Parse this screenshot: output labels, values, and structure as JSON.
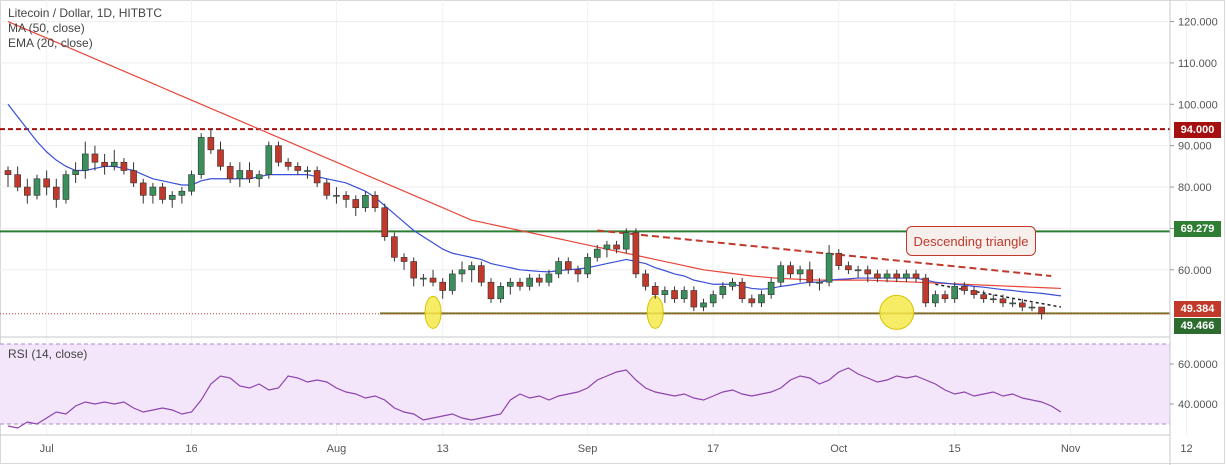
{
  "legend": {
    "title": "Litecoin / Dollar, 1D, HITBTC",
    "ma": "MA (50, close)",
    "ema": "EMA (20, close)"
  },
  "rsi_title": "RSI (14, close)",
  "annotation": "Descending triangle",
  "price_tags": {
    "resistance": "94.000",
    "triangle_top": "69.279",
    "last": "49.384",
    "support": "49.466"
  },
  "colors": {
    "up": "#3a8f5c",
    "down": "#c0392b",
    "ma": "#e8463a",
    "ema": "#3a4fd8",
    "rsi": "#8e44ad",
    "resistance": "#a50f0f",
    "triangle_top": "#2e7d32",
    "support": "#7a7a2e",
    "highlight": "#f6e94b"
  },
  "chart_data": {
    "type": "line",
    "title": "Litecoin / Dollar, 1D, HITBTC",
    "price_axis": {
      "ticks": [
        "120.000",
        "110.000",
        "100.000",
        "90.000",
        "80.000",
        "70.000",
        "60.000"
      ],
      "ylim": [
        44,
        124
      ]
    },
    "time_axis": {
      "labels": [
        "Jul",
        "16",
        "Aug",
        "13",
        "Sep",
        "17",
        "Oct",
        "15",
        "Nov",
        "12"
      ]
    },
    "levels": [
      {
        "name": "resistance",
        "value": 94.0
      },
      {
        "name": "triangle_top",
        "value": 69.279
      },
      {
        "name": "support",
        "value": 49.466
      },
      {
        "name": "last",
        "value": 49.384
      }
    ],
    "candles": [
      [
        84,
        85,
        80,
        83
      ],
      [
        83,
        85,
        79,
        80
      ],
      [
        80,
        82,
        76,
        78
      ],
      [
        78,
        83,
        77,
        82
      ],
      [
        82,
        84,
        78,
        80
      ],
      [
        80,
        82,
        75,
        77
      ],
      [
        77,
        84,
        76,
        83
      ],
      [
        83,
        86,
        81,
        84
      ],
      [
        84,
        91,
        82,
        88
      ],
      [
        88,
        90,
        84,
        86
      ],
      [
        86,
        88,
        83,
        85
      ],
      [
        85,
        89,
        84,
        86
      ],
      [
        86,
        87,
        83,
        84
      ],
      [
        84,
        86,
        80,
        81
      ],
      [
        81,
        82,
        76,
        78
      ],
      [
        78,
        81,
        76,
        80
      ],
      [
        80,
        81,
        76,
        77
      ],
      [
        77,
        79,
        75,
        78
      ],
      [
        78,
        80,
        76,
        79
      ],
      [
        79,
        84,
        78,
        83
      ],
      [
        83,
        93,
        82,
        92
      ],
      [
        92,
        94,
        88,
        89
      ],
      [
        89,
        91,
        84,
        85
      ],
      [
        85,
        86,
        81,
        82
      ],
      [
        82,
        86,
        80,
        84
      ],
      [
        84,
        86,
        81,
        82
      ],
      [
        82,
        84,
        80,
        83
      ],
      [
        83,
        91,
        82,
        90
      ],
      [
        90,
        91,
        85,
        86
      ],
      [
        86,
        87,
        84,
        85
      ],
      [
        85,
        86,
        83,
        84
      ],
      [
        84,
        85,
        82,
        84
      ],
      [
        84,
        85,
        80,
        81
      ],
      [
        81,
        82,
        77,
        78
      ],
      [
        78,
        80,
        76,
        78
      ],
      [
        78,
        79,
        75,
        77
      ],
      [
        77,
        78,
        73,
        75
      ],
      [
        75,
        79,
        74,
        78
      ],
      [
        78,
        79,
        74,
        75
      ],
      [
        75,
        76,
        67,
        68
      ],
      [
        68,
        69,
        62,
        63
      ],
      [
        63,
        64,
        60,
        62
      ],
      [
        62,
        63,
        56,
        58
      ],
      [
        58,
        59,
        56,
        58
      ],
      [
        58,
        60,
        56,
        57
      ],
      [
        57,
        58,
        53,
        55
      ],
      [
        55,
        60,
        54,
        59
      ],
      [
        59,
        62,
        57,
        60
      ],
      [
        60,
        62,
        57,
        61
      ],
      [
        61,
        62,
        56,
        57
      ],
      [
        57,
        58,
        52,
        53
      ],
      [
        53,
        57,
        52,
        56
      ],
      [
        56,
        58,
        54,
        57
      ],
      [
        57,
        58,
        55,
        56
      ],
      [
        56,
        59,
        55,
        58
      ],
      [
        58,
        59,
        56,
        57
      ],
      [
        57,
        60,
        56,
        59
      ],
      [
        59,
        63,
        58,
        62
      ],
      [
        62,
        63,
        59,
        60
      ],
      [
        60,
        61,
        57,
        59
      ],
      [
        59,
        64,
        58,
        63
      ],
      [
        63,
        66,
        62,
        65
      ],
      [
        65,
        67,
        63,
        66
      ],
      [
        66,
        67,
        64,
        65
      ],
      [
        65,
        70,
        64,
        69
      ],
      [
        69,
        70,
        58,
        59
      ],
      [
        59,
        60,
        55,
        56
      ],
      [
        56,
        57,
        53,
        54
      ],
      [
        54,
        56,
        52,
        55
      ],
      [
        55,
        56,
        52,
        53
      ],
      [
        53,
        56,
        52,
        55
      ],
      [
        55,
        56,
        50,
        51
      ],
      [
        51,
        53,
        50,
        52
      ],
      [
        52,
        55,
        51,
        54
      ],
      [
        54,
        57,
        53,
        56
      ],
      [
        56,
        58,
        55,
        57
      ],
      [
        57,
        58,
        52,
        53
      ],
      [
        53,
        54,
        51,
        52
      ],
      [
        52,
        55,
        51,
        54
      ],
      [
        54,
        58,
        53,
        57
      ],
      [
        57,
        62,
        56,
        61
      ],
      [
        61,
        62,
        58,
        59
      ],
      [
        59,
        61,
        57,
        60
      ],
      [
        60,
        62,
        56,
        57
      ],
      [
        57,
        58,
        55,
        57
      ],
      [
        57,
        66,
        56,
        64
      ],
      [
        64,
        65,
        60,
        61
      ],
      [
        61,
        62,
        59,
        60
      ],
      [
        60,
        61,
        58,
        60
      ],
      [
        60,
        61,
        57,
        59
      ],
      [
        59,
        60,
        57,
        58
      ],
      [
        58,
        60,
        57,
        59
      ],
      [
        59,
        60,
        57,
        58
      ],
      [
        58,
        60,
        57,
        59
      ],
      [
        59,
        60,
        57,
        58
      ],
      [
        58,
        59,
        51,
        52
      ],
      [
        52,
        55,
        51,
        54
      ],
      [
        54,
        55,
        52,
        53
      ],
      [
        53,
        57,
        52,
        56
      ],
      [
        56,
        57,
        54,
        55
      ],
      [
        55,
        56,
        53,
        54
      ],
      [
        54,
        55,
        52,
        53
      ],
      [
        53,
        54,
        52,
        53
      ],
      [
        53,
        54,
        51,
        52
      ],
      [
        52,
        53,
        51,
        52
      ],
      [
        52,
        53,
        50,
        51
      ],
      [
        51,
        52,
        50,
        51
      ],
      [
        51,
        51,
        48,
        49.4
      ]
    ],
    "series": [
      {
        "name": "MA (50, close)",
        "values": [
          120,
          119,
          118,
          117,
          116,
          115,
          114,
          113,
          112,
          111,
          110,
          109,
          108,
          107,
          106,
          105,
          104,
          103,
          102,
          101,
          100,
          99,
          98,
          97,
          96,
          95,
          94,
          93,
          92,
          91,
          90,
          89,
          88,
          87,
          86,
          85,
          84,
          83,
          82,
          81,
          80,
          79,
          78,
          77,
          76,
          75,
          74,
          73,
          72,
          71.5,
          71,
          70.5,
          70,
          69.5,
          69,
          68.5,
          68,
          67.5,
          67,
          66.5,
          66,
          65.5,
          65,
          64.5,
          64,
          63.5,
          63,
          62.5,
          62,
          61.5,
          61,
          60.5,
          60,
          59.7,
          59.4,
          59.1,
          58.8,
          58.5,
          58.3,
          58.1,
          57.9,
          57.8,
          57.7,
          57.6,
          57.5,
          57.5,
          57.5,
          57.5,
          57.5,
          57.5,
          57.4,
          57.3,
          57.2,
          57.1,
          57,
          56.9,
          56.8,
          56.7,
          56.6,
          56.5,
          56.4,
          56.3,
          56.2,
          56.1,
          56,
          55.9,
          55.8,
          55.7,
          55.6,
          55.5
        ]
      },
      {
        "name": "EMA (20, close)",
        "values": [
          100,
          97,
          94,
          91,
          88.5,
          86.5,
          85,
          84,
          84,
          84.5,
          85,
          85,
          84.5,
          84,
          83,
          82,
          81.5,
          81,
          80.5,
          80.5,
          81.5,
          82,
          82,
          82,
          82,
          82,
          82.5,
          83,
          83,
          83,
          83,
          83,
          82.5,
          82,
          81.5,
          81,
          80,
          79,
          77.5,
          75.5,
          73.5,
          71.5,
          69.5,
          68,
          66.5,
          65,
          64,
          63.5,
          63,
          62.5,
          61.5,
          61,
          60.5,
          60,
          59.8,
          59.6,
          59.5,
          59.8,
          60,
          60.2,
          60.5,
          61,
          61.5,
          62,
          62.5,
          62,
          61.5,
          60.5,
          59.8,
          59,
          58.5,
          57.5,
          57,
          56.5,
          56.5,
          56.5,
          56,
          55.5,
          55.3,
          55.5,
          56,
          56.3,
          56.7,
          57,
          57,
          57.5,
          57.7,
          57.8,
          58,
          58,
          58,
          58,
          58,
          58,
          58,
          57.5,
          57,
          56.8,
          56.5,
          56.3,
          56,
          55.8,
          55.5,
          55.2,
          55,
          54.7,
          54.5,
          54.3,
          54,
          53.7
        ]
      }
    ],
    "rsi": {
      "name": "RSI (14, close)",
      "ylim": [
        26,
        72
      ],
      "ticks": [
        "60.0000",
        "40.0000"
      ],
      "bands": [
        70,
        30
      ],
      "values": [
        29,
        28,
        31,
        30,
        33,
        36,
        35,
        39,
        41,
        40,
        41,
        40,
        41,
        38,
        36,
        37,
        38,
        37,
        35,
        36,
        42,
        50,
        54,
        53,
        49,
        48,
        50,
        47,
        48,
        54,
        53,
        51,
        52,
        51,
        48,
        46,
        45,
        43,
        44,
        42,
        38,
        36,
        35,
        32,
        33,
        34,
        35,
        33,
        32,
        33,
        34,
        35,
        42,
        45,
        43,
        44,
        42,
        44,
        45,
        46,
        48,
        52,
        54,
        56,
        57,
        52,
        48,
        46,
        45,
        44,
        45,
        43,
        42,
        44,
        46,
        47,
        45,
        44,
        45,
        46,
        48,
        52,
        54,
        53,
        50,
        52,
        56,
        58,
        55,
        53,
        51,
        52,
        54,
        53,
        54,
        52,
        50,
        47,
        45,
        46,
        44,
        45,
        46,
        44,
        45,
        43,
        42,
        41,
        39,
        36
      ]
    }
  }
}
